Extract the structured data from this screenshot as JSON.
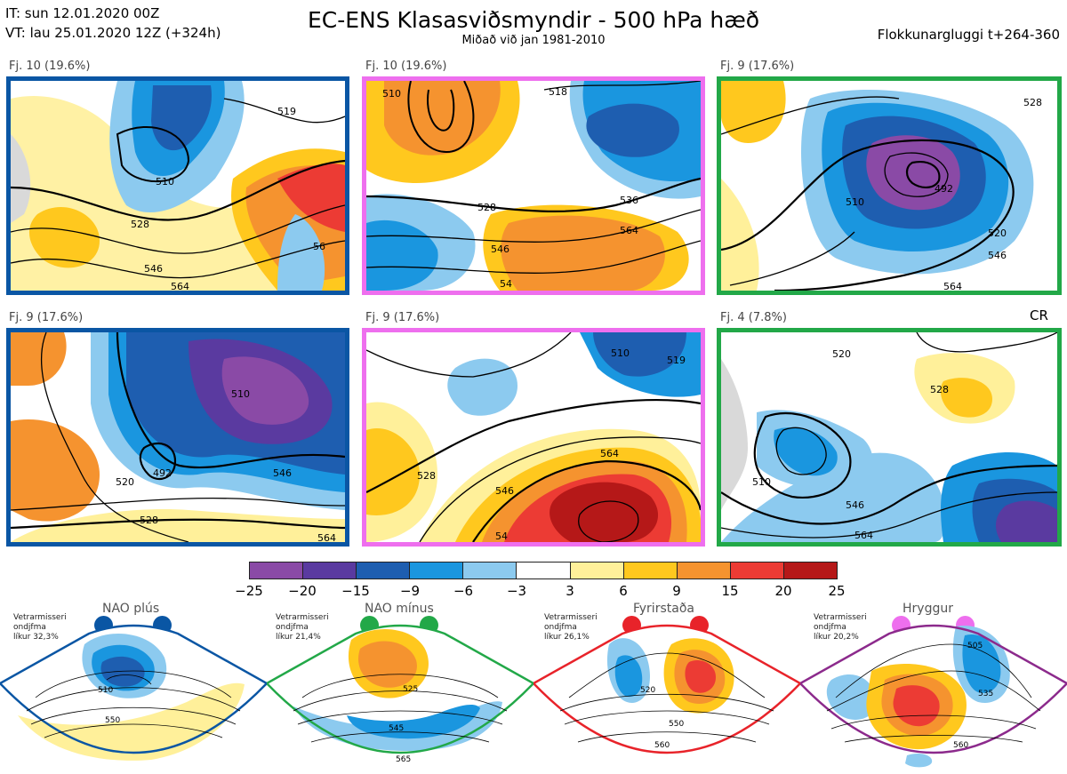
{
  "header": {
    "line1": "IT: sun 12.01.2020 00Z",
    "line2": "VT: lau 25.01.2020 12Z  (+324h)",
    "title": "EC-ENS Klasasviðsmyndir - 500 hPa hæð",
    "subtitle": "Miðað við jan 1981-2010",
    "window": "Flokkunargluggi t+264-360"
  },
  "panels": [
    {
      "label": "Fj. 10 (19.6%)",
      "regime_color": "#0a56a4",
      "contours": [
        "510",
        "519",
        "528",
        "546",
        "564",
        "56"
      ]
    },
    {
      "label": "Fj. 10 (19.6%)",
      "regime_color": "#ee6fee",
      "contours": [
        "510",
        "518",
        "528",
        "536",
        "546",
        "564",
        "54"
      ]
    },
    {
      "label": "Fj. 9 (17.6%)",
      "regime_color": "#22a848",
      "contours": [
        "492",
        "510",
        "520",
        "528",
        "546",
        "564"
      ]
    },
    {
      "label": "Fj. 9 (17.6%)",
      "regime_color": "#0a56a4",
      "contours": [
        "492",
        "510",
        "520",
        "528",
        "546",
        "564"
      ]
    },
    {
      "label": "Fj. 9 (17.6%)",
      "regime_color": "#ee6fee",
      "contours": [
        "510",
        "519",
        "528",
        "546",
        "564",
        "54"
      ]
    },
    {
      "label": "Fj. 4 (7.8%)",
      "regime_color": "#22a848",
      "contours": [
        "510",
        "520",
        "528",
        "546",
        "564"
      ]
    }
  ],
  "cr_label": "CR",
  "colorbar": {
    "colors": [
      "#8a4aa6",
      "#5a3aa0",
      "#1e5eb0",
      "#1a96df",
      "#8ccaef",
      "#ffffff",
      "#fff09a",
      "#ffc81e",
      "#f5932f",
      "#ec3b34",
      "#b51818"
    ],
    "ticks": [
      "−25",
      "−20",
      "−15",
      "−9",
      "−6",
      "−3",
      "3",
      "6",
      "9",
      "15",
      "20",
      "25"
    ]
  },
  "regimes": [
    {
      "title": "NAO plús",
      "note": [
        "Vetrarmisseri",
        "ondjfma",
        "líkur 32,3%"
      ],
      "color": "#0a56a4",
      "contours": [
        "510",
        "550"
      ]
    },
    {
      "title": "NAO mínus",
      "note": [
        "Vetrarmisseri",
        "ondjfma",
        "líkur 21,4%"
      ],
      "color": "#22a848",
      "contours": [
        "525",
        "545",
        "565"
      ]
    },
    {
      "title": "Fyrirstaða",
      "note": [
        "Vetrarmisseri",
        "ondjfma",
        "líkur 26,1%"
      ],
      "color": "#e8232a",
      "contours": [
        "520",
        "550",
        "560"
      ]
    },
    {
      "title": "Hryggur",
      "note": [
        "Vetrarmisseri",
        "ondjfma",
        "líkur 20,2%"
      ],
      "color": "#8c2a8c",
      "contours": [
        "505",
        "535",
        "560"
      ]
    }
  ]
}
